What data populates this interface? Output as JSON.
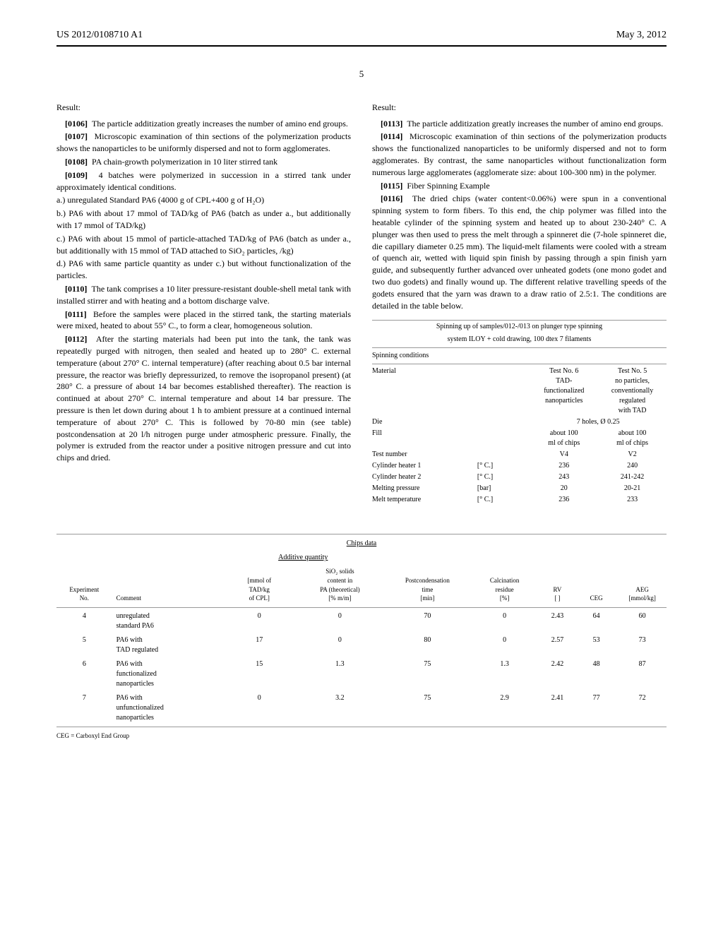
{
  "header": {
    "left": "US 2012/0108710 A1",
    "right": "May 3, 2012"
  },
  "page_number": "5",
  "left_column": {
    "result_label": "Result:",
    "paragraphs": [
      {
        "num": "[0106]",
        "text": "The particle additization greatly increases the number of amino end groups."
      },
      {
        "num": "[0107]",
        "text": "Microscopic examination of thin sections of the polymerization products shows the nanoparticles to be uniformly dispersed and not to form agglomerates."
      },
      {
        "num": "[0108]",
        "text": "PA chain-growth polymerization in 10 liter stirred tank"
      },
      {
        "num": "[0109]",
        "text": "4 batches were polymerized in succession in a stirred tank under approximately identical conditions."
      }
    ],
    "batches": [
      "a.) unregulated Standard PA6 (4000 g of CPL+400 g of H₂O)",
      "b.) PA6 with about 17 mmol of TAD/kg of PA6 (batch as under a., but additionally with 17 mmol of TAD/kg)",
      "c.) PA6 with about 15 mmol of particle-attached TAD/kg of PA6 (batch as under a., but additionally with 15 mmol of TAD attached to SiO₂ particles, /kg)",
      "d.) PA6 with same particle quantity as under c.) but without functionalization of the particles."
    ],
    "paragraphs2": [
      {
        "num": "[0110]",
        "text": "The tank comprises a 10 liter pressure-resistant double-shell metal tank with installed stirrer and with heating and a bottom discharge valve."
      },
      {
        "num": "[0111]",
        "text": "Before the samples were placed in the stirred tank, the starting materials were mixed, heated to about 55° C., to form a clear, homogeneous solution."
      },
      {
        "num": "[0112]",
        "text": "After the starting materials had been put into the tank, the tank was repeatedly purged with nitrogen, then sealed and heated up to 280° C. external temperature (about 270° C. internal temperature) (after reaching about 0.5 bar internal pressure, the reactor was briefly depressurized, to remove the isopropanol present) (at 280° C. a pressure of about 14 bar becomes established thereafter). The reaction is continued at about 270° C. internal temperature and about 14 bar pressure. The pressure is then let down during about 1 h to ambient pressure at a continued internal temperature of about 270° C. This is followed by 70-80 min (see table) postcondensation at 20 l/h nitrogen purge under atmospheric pressure. Finally, the polymer is extruded from the reactor under a positive nitrogen pressure and cut into chips and dried."
      }
    ]
  },
  "right_column": {
    "result_label": "Result:",
    "paragraphs": [
      {
        "num": "[0113]",
        "text": "The particle additization greatly increases the number of amino end groups."
      },
      {
        "num": "[0114]",
        "text": "Microscopic examination of thin sections of the polymerization products shows the functionalized nanoparticles to be uniformly dispersed and not to form agglomerates. By contrast, the same nanoparticles without functionalization form numerous large agglomerates (agglomerate size: about 100-300 nm) in the polymer."
      },
      {
        "num": "[0115]",
        "text": "Fiber Spinning Example"
      },
      {
        "num": "[0116]",
        "text": "The dried chips (water content<0.06%) were spun in a conventional spinning system to form fibers. To this end, the chip polymer was filled into the heatable cylinder of the spinning system and heated up to about 230-240° C. A plunger was then used to press the melt through a spinneret die (7-hole spinneret die, die capillary diameter 0.25 mm). The liquid-melt filaments were cooled with a stream of quench air, wetted with liquid spin finish by passing through a spin finish yarn guide, and subsequently further advanced over unheated godets (one mono godet and two duo godets) and finally wound up. The different relative travelling speeds of the godets ensured that the yarn was drawn to a draw ratio of 2.5:1. The conditions are detailed in the table below."
      }
    ]
  },
  "spinning_table": {
    "title1": "Spinning up of samples/012-/013 on plunger type spinning",
    "title2": "system ILOY + cold drawing, 100 dtex 7 filaments",
    "section": "Spinning conditions",
    "material_label": "Material",
    "col1_lines": [
      "Test No. 6",
      "TAD-",
      "functionalized",
      "nanoparticles"
    ],
    "col2_lines": [
      "Test No. 5",
      "no particles,",
      "conventionally",
      "regulated",
      "with TAD"
    ],
    "die_label": "Die",
    "die_value": "7 holes, Ø 0.25",
    "fill_label": "Fill",
    "fill_col1": [
      "about 100",
      "ml of chips"
    ],
    "fill_col2": [
      "about 100",
      "ml of chips"
    ],
    "rows": [
      {
        "label": "Test number",
        "unit": "",
        "c1": "V4",
        "c2": "V2"
      },
      {
        "label": "Cylinder heater 1",
        "unit": "[° C.]",
        "c1": "236",
        "c2": "240"
      },
      {
        "label": "Cylinder heater 2",
        "unit": "[° C.]",
        "c1": "243",
        "c2": "241-242"
      },
      {
        "label": "Melting pressure",
        "unit": "[bar]",
        "c1": "20",
        "c2": "20-21"
      },
      {
        "label": "Melt temperature",
        "unit": "[° C.]",
        "c1": "236",
        "c2": "233"
      }
    ]
  },
  "chips_table": {
    "title": "Chips data",
    "subtitle": "Additive quantity",
    "headers": [
      "Experiment\nNo.",
      "Comment",
      "[mmol of\nTAD/kg\nof CPL]",
      "SiO₂ solids\ncontent in\nPA (theoretical)\n[% m/m]",
      "Postcondensation\ntime\n[min]",
      "Calcination\nresidue\n[%]",
      "RV\n[ ]",
      "CEG",
      "AEG\n[mmol/kg]"
    ],
    "rows": [
      {
        "no": "4",
        "comment": "unregulated\nstandard PA6",
        "tad": "0",
        "sio2": "0",
        "time": "70",
        "calc": "0",
        "rv": "2.43",
        "ceg": "64",
        "aeg": "60"
      },
      {
        "no": "5",
        "comment": "PA6 with\nTAD regulated",
        "tad": "17",
        "sio2": "0",
        "time": "80",
        "calc": "0",
        "rv": "2.57",
        "ceg": "53",
        "aeg": "73"
      },
      {
        "no": "6",
        "comment": "PA6 with\nfunctionalized\nnanoparticles",
        "tad": "15",
        "sio2": "1.3",
        "time": "75",
        "calc": "1.3",
        "rv": "2.42",
        "ceg": "48",
        "aeg": "87"
      },
      {
        "no": "7",
        "comment": "PA6 with\nunfunctionalized\nnanoparticles",
        "tad": "0",
        "sio2": "3.2",
        "time": "75",
        "calc": "2.9",
        "rv": "2.41",
        "ceg": "77",
        "aeg": "72"
      }
    ],
    "footnote": "CEG = Carboxyl End Group"
  }
}
